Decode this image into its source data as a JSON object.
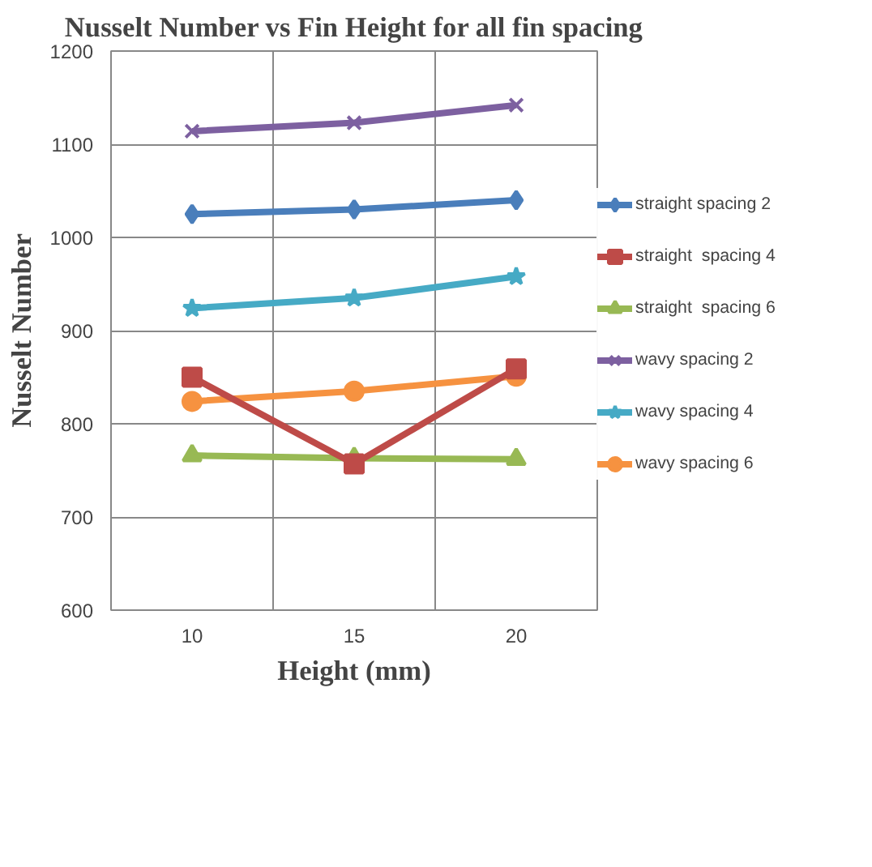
{
  "chart_data": {
    "type": "line",
    "title": "Nusselt Number vs Fin Height for all fin spacing",
    "xlabel": "Height (mm)",
    "ylabel": "Nusselt Number",
    "categories": [
      "10",
      "15",
      "20"
    ],
    "ylim": [
      600,
      1200
    ],
    "yticks": [
      600,
      700,
      800,
      900,
      1000,
      1100,
      1200
    ],
    "grid": true,
    "legend": "right",
    "series": [
      {
        "name": "straight spacing 2",
        "color": "#4a7ebb",
        "marker": "diamond",
        "values": [
          1025,
          1030,
          1040
        ]
      },
      {
        "name": "straight  spacing 4",
        "color": "#be4b48",
        "marker": "square",
        "values": [
          850,
          757,
          859
        ]
      },
      {
        "name": "straight  spacing 6",
        "color": "#98b954",
        "marker": "triangle",
        "values": [
          766,
          763,
          762
        ]
      },
      {
        "name": "wavy spacing 2",
        "color": "#7d60a0",
        "marker": "cross",
        "values": [
          1114,
          1123,
          1142
        ]
      },
      {
        "name": "wavy spacing 4",
        "color": "#46aac5",
        "marker": "star",
        "values": [
          924,
          935,
          958
        ]
      },
      {
        "name": "wavy spacing 6",
        "color": "#f69240",
        "marker": "circle",
        "values": [
          824,
          835,
          851
        ]
      }
    ]
  }
}
